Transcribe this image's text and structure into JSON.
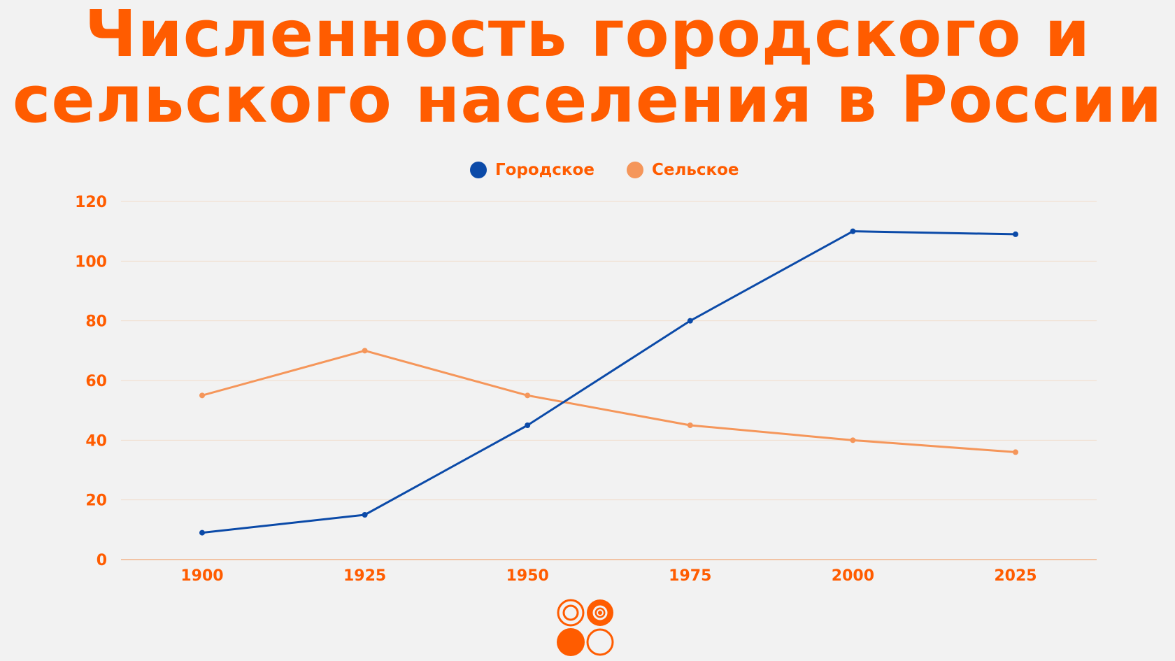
{
  "title_line1": "Численность городского и",
  "title_line2": "сельского населения в России",
  "colors": {
    "title": "#ff5c00",
    "axis_text": "#ff5c00",
    "urban": "#0b4aa8",
    "rural": "#f5965a",
    "grid": "#f1dccb",
    "background": "#f2f2f2"
  },
  "chart_data": {
    "type": "line",
    "title": "Численность городского и сельского населения в России",
    "xlabel": "",
    "ylabel": "",
    "x": [
      1900,
      1925,
      1950,
      1975,
      2000,
      2025
    ],
    "series": [
      {
        "name": "Городское",
        "values": [
          9,
          15,
          45,
          80,
          110,
          109
        ]
      },
      {
        "name": "Сельское",
        "values": [
          55,
          70,
          55,
          45,
          40,
          36
        ]
      }
    ],
    "ylim": [
      0,
      120
    ],
    "yticks": [
      0,
      20,
      40,
      60,
      80,
      100,
      120
    ],
    "grid": true,
    "legend": "top-center"
  }
}
